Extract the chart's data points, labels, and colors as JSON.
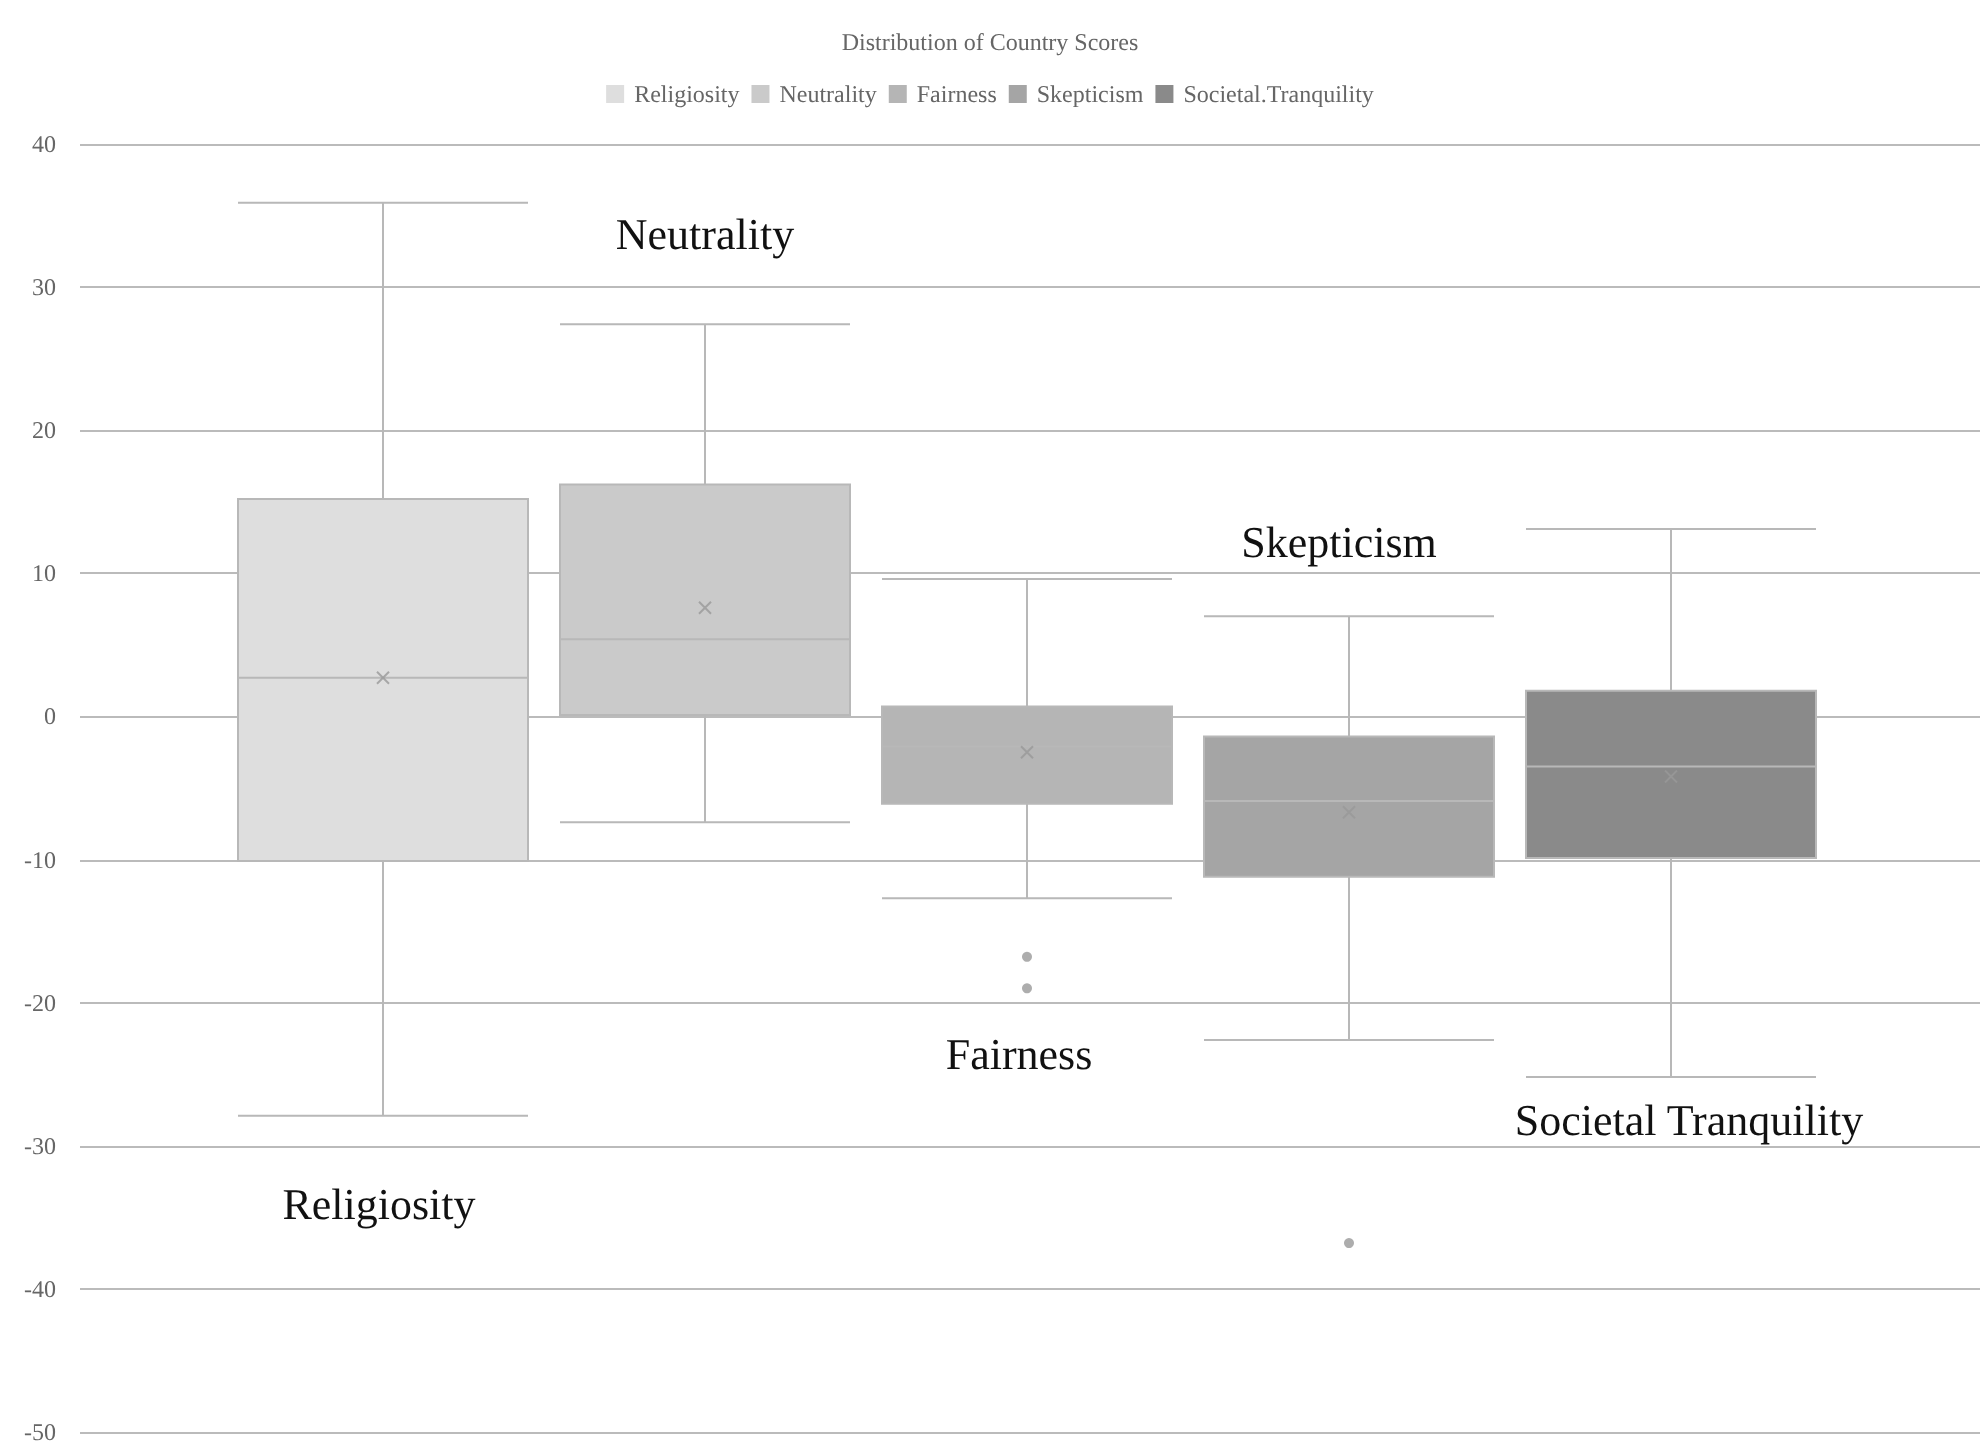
{
  "chart_data": {
    "type": "box",
    "title": "Distribution of Country Scores",
    "categories": [
      null
    ],
    "series": [
      {
        "name": "Religiosity",
        "color": "#dedede",
        "boxes": [
          {
            "low": -27.9,
            "q1": -10.1,
            "median": 2.7,
            "q3": 15.2,
            "high": 35.9,
            "mean": 2.7
          }
        ]
      },
      {
        "name": "Neutrality",
        "color": "#cacaca",
        "boxes": [
          {
            "low": -7.4,
            "q1": 0.1,
            "median": 5.4,
            "q3": 16.2,
            "high": 27.4,
            "mean": 7.6
          }
        ]
      },
      {
        "name": "Fairness",
        "color": "#b5b5b5",
        "boxes": [
          {
            "low": -12.7,
            "q1": -6.1,
            "median": -2.1,
            "q3": 0.7,
            "high": 9.6,
            "mean": -2.5,
            "outliers": [
              -16.8,
              -19.0
            ]
          }
        ]
      },
      {
        "name": "Skepticism",
        "color": "#a5a5a5",
        "boxes": [
          {
            "low": -22.6,
            "q1": -11.2,
            "median": -5.9,
            "q3": -1.4,
            "high": 7.0,
            "mean": -6.7,
            "outliers": [
              -36.8
            ]
          }
        ]
      },
      {
        "name": "Societal.Tranquility",
        "color": "#8a8a8a",
        "boxes": [
          {
            "low": -25.2,
            "q1": -9.9,
            "median": -3.5,
            "q3": 1.8,
            "high": 13.1,
            "mean": -4.2
          }
        ]
      }
    ],
    "annotations": [
      "Religiosity",
      "Neutrality",
      "Fairness",
      "Skepticism",
      "Societal Tranquility"
    ],
    "ylim": [
      -50,
      40
    ],
    "yticks": [
      -50,
      -40,
      -30,
      -20,
      -10,
      0,
      10,
      20,
      30,
      40
    ],
    "grid": "y",
    "legend": "top",
    "tick_labels": "y"
  }
}
